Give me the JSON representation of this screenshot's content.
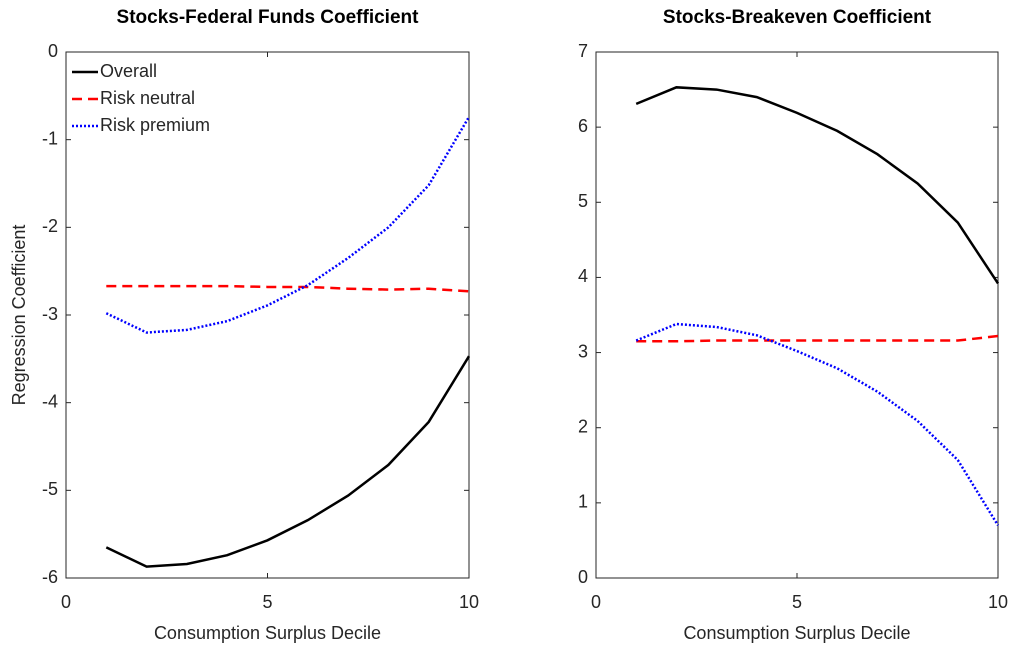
{
  "chart_data": [
    {
      "type": "line",
      "title": "Stocks-Federal Funds Coefficient",
      "xlabel": "Consumption Surplus Decile",
      "ylabel": "Regression Coefficient",
      "x": [
        1,
        2,
        3,
        4,
        5,
        6,
        7,
        8,
        9,
        10
      ],
      "series": [
        {
          "name": "Overall",
          "color": "#000000",
          "style": "solid",
          "values": [
            -5.65,
            -5.87,
            -5.84,
            -5.74,
            -5.57,
            -5.34,
            -5.06,
            -4.71,
            -4.22,
            -3.47
          ]
        },
        {
          "name": "Risk neutral",
          "color": "#ff0000",
          "style": "dashed",
          "values": [
            -2.67,
            -2.67,
            -2.67,
            -2.67,
            -2.68,
            -2.68,
            -2.7,
            -2.71,
            -2.7,
            -2.73
          ]
        },
        {
          "name": "Risk premium",
          "color": "#0000ff",
          "style": "dotted",
          "values": [
            -2.98,
            -3.2,
            -3.17,
            -3.07,
            -2.89,
            -2.66,
            -2.35,
            -2.0,
            -1.52,
            -0.74
          ]
        }
      ],
      "xlim": [
        0,
        10
      ],
      "xticks": [
        0,
        5,
        10
      ],
      "ylim": [
        -6,
        0
      ],
      "yticks": [
        -6,
        -5,
        -4,
        -3,
        -2,
        -1,
        0
      ],
      "legend": "upper left"
    },
    {
      "type": "line",
      "title": "Stocks-Breakeven Coefficient",
      "xlabel": "Consumption Surplus Decile",
      "x": [
        1,
        2,
        3,
        4,
        5,
        6,
        7,
        8,
        9,
        10
      ],
      "series": [
        {
          "color": "#000000",
          "style": "solid",
          "values": [
            6.31,
            6.53,
            6.5,
            6.4,
            6.19,
            5.95,
            5.64,
            5.25,
            4.73,
            3.92
          ]
        },
        {
          "color": "#ff0000",
          "style": "dashed",
          "values": [
            3.15,
            3.15,
            3.16,
            3.16,
            3.16,
            3.16,
            3.16,
            3.16,
            3.16,
            3.22
          ]
        },
        {
          "color": "#0000ff",
          "style": "dotted",
          "values": [
            3.16,
            3.38,
            3.34,
            3.23,
            3.02,
            2.79,
            2.48,
            2.09,
            1.57,
            0.7
          ]
        }
      ],
      "xlim": [
        0,
        10
      ],
      "xticks": [
        0,
        5,
        10
      ],
      "ylim": [
        0,
        7
      ],
      "yticks": [
        0,
        1,
        2,
        3,
        4,
        5,
        6,
        7
      ]
    }
  ]
}
